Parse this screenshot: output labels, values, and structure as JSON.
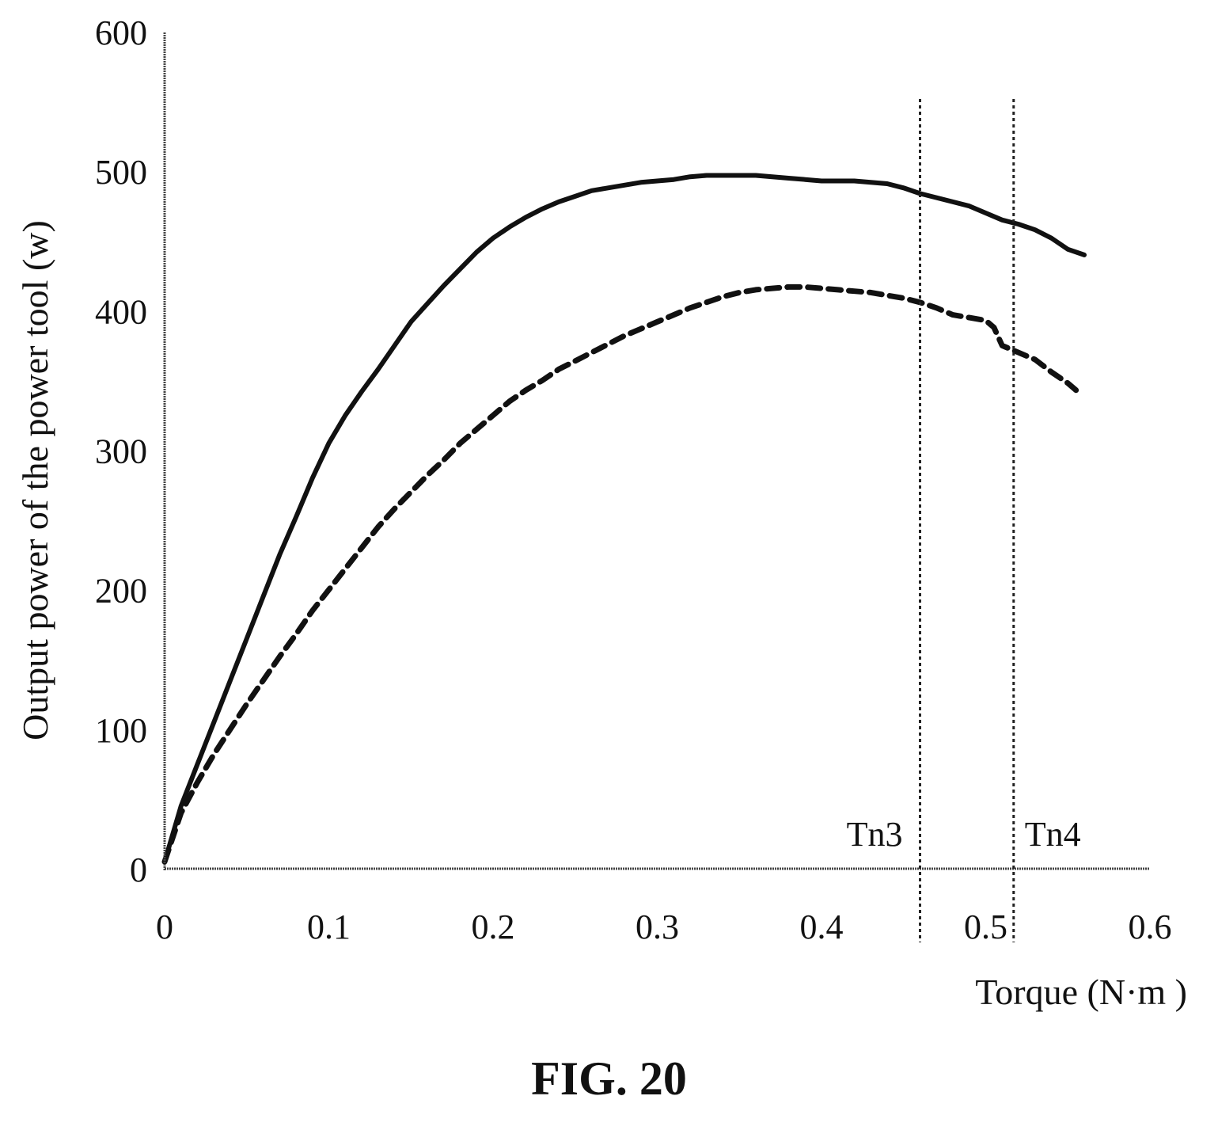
{
  "chart_data": {
    "type": "line",
    "xlabel": "Torque (N·m )",
    "ylabel": "Output power of the power tool (w)",
    "xlim": [
      0,
      0.6
    ],
    "ylim": [
      0,
      600
    ],
    "x_ticks": [
      "0",
      "0.1",
      "0.2",
      "0.3",
      "0.4",
      "0.5",
      "0.6"
    ],
    "y_ticks": [
      "0",
      "100",
      "200",
      "300",
      "400",
      "500",
      "600"
    ],
    "grid": false,
    "legend": "none",
    "series": [
      {
        "style": "solid",
        "color": "#111111",
        "x": [
          0,
          0.01,
          0.02,
          0.03,
          0.04,
          0.05,
          0.06,
          0.07,
          0.08,
          0.09,
          0.1,
          0.11,
          0.12,
          0.13,
          0.14,
          0.15,
          0.16,
          0.17,
          0.18,
          0.19,
          0.2,
          0.21,
          0.22,
          0.23,
          0.24,
          0.25,
          0.26,
          0.27,
          0.28,
          0.29,
          0.3,
          0.31,
          0.32,
          0.33,
          0.34,
          0.35,
          0.36,
          0.37,
          0.38,
          0.39,
          0.4,
          0.41,
          0.42,
          0.43,
          0.44,
          0.45,
          0.46,
          0.47,
          0.48,
          0.49,
          0.5,
          0.51,
          0.52,
          0.53,
          0.54,
          0.55,
          0.56
        ],
        "y": [
          5,
          45,
          75,
          105,
          135,
          165,
          195,
          225,
          252,
          280,
          305,
          325,
          342,
          358,
          375,
          392,
          405,
          418,
          430,
          442,
          452,
          460,
          467,
          473,
          478,
          482,
          486,
          488,
          490,
          492,
          493,
          494,
          496,
          497,
          497,
          497,
          497,
          496,
          495,
          494,
          493,
          493,
          493,
          492,
          491,
          488,
          484,
          481,
          478,
          475,
          470,
          465,
          462,
          458,
          452,
          444,
          440
        ]
      },
      {
        "style": "dashed",
        "color": "#111111",
        "x": [
          0,
          0.01,
          0.02,
          0.03,
          0.04,
          0.05,
          0.06,
          0.07,
          0.08,
          0.09,
          0.1,
          0.11,
          0.12,
          0.13,
          0.14,
          0.15,
          0.16,
          0.17,
          0.18,
          0.19,
          0.2,
          0.21,
          0.22,
          0.23,
          0.24,
          0.25,
          0.26,
          0.27,
          0.28,
          0.29,
          0.3,
          0.31,
          0.32,
          0.33,
          0.34,
          0.35,
          0.36,
          0.37,
          0.38,
          0.39,
          0.4,
          0.41,
          0.42,
          0.43,
          0.44,
          0.45,
          0.46,
          0.47,
          0.48,
          0.49,
          0.5,
          0.505,
          0.51,
          0.52,
          0.53,
          0.54,
          0.55,
          0.555
        ],
        "y": [
          5,
          40,
          62,
          82,
          100,
          118,
          135,
          152,
          168,
          185,
          200,
          215,
          230,
          245,
          258,
          270,
          282,
          293,
          305,
          315,
          325,
          335,
          343,
          350,
          358,
          364,
          370,
          376,
          382,
          387,
          392,
          397,
          402,
          406,
          410,
          413,
          415,
          416,
          417,
          417,
          416,
          415,
          414,
          413,
          411,
          409,
          406,
          402,
          397,
          395,
          393,
          388,
          375,
          370,
          365,
          356,
          348,
          343
        ]
      }
    ],
    "vertical_markers": [
      {
        "label": "Tn3",
        "x": 0.46,
        "label_side": "left"
      },
      {
        "label": "Tn4",
        "x": 0.517,
        "label_side": "right"
      }
    ]
  },
  "figure": {
    "caption": "FIG. 20"
  }
}
